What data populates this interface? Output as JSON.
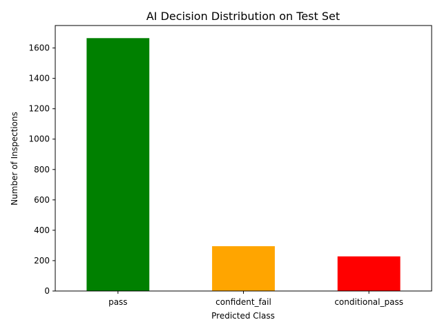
{
  "chart_data": {
    "type": "bar",
    "title": "AI Decision Distribution on Test Set",
    "xlabel": "Predicted Class",
    "ylabel": "Number of Inspections",
    "categories": [
      "pass",
      "confident_fail",
      "conditional_pass"
    ],
    "values": [
      1665,
      295,
      228
    ],
    "colors": [
      "#008000",
      "#FFA500",
      "#FF0000"
    ],
    "ylim": [
      0,
      1748
    ],
    "yticks": [
      0,
      200,
      400,
      600,
      800,
      1000,
      1200,
      1400,
      1600
    ],
    "grid": false,
    "legend": "none"
  }
}
